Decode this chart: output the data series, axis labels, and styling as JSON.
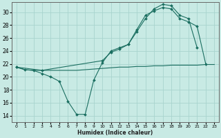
{
  "xlabel": "Humidex (Indice chaleur)",
  "bg_color": "#c8eae4",
  "grid_color": "#a8d4ce",
  "line_color": "#1a6e60",
  "x_ticks": [
    0,
    1,
    2,
    3,
    4,
    5,
    6,
    7,
    8,
    9,
    10,
    11,
    12,
    13,
    14,
    15,
    16,
    17,
    18,
    19,
    20,
    21,
    22,
    23
  ],
  "y_ticks": [
    14,
    16,
    18,
    20,
    22,
    24,
    26,
    28,
    30
  ],
  "xlim": [
    -0.5,
    23.5
  ],
  "ylim": [
    13.0,
    31.5
  ],
  "series": [
    {
      "x": [
        0,
        1,
        2,
        3,
        4,
        5,
        6,
        7,
        8,
        9,
        10,
        11,
        12,
        13,
        14,
        15,
        16,
        17,
        18,
        19,
        20,
        21,
        22,
        23
      ],
      "y": [
        21.5,
        21.1,
        21.0,
        21.0,
        21.0,
        21.0,
        21.0,
        21.0,
        21.1,
        21.2,
        21.3,
        21.4,
        21.5,
        21.5,
        21.6,
        21.6,
        21.7,
        21.7,
        21.8,
        21.8,
        21.8,
        21.8,
        21.9,
        21.9
      ],
      "marker": false
    },
    {
      "x": [
        0,
        1,
        2,
        3,
        4,
        5,
        6,
        7,
        8,
        9,
        10,
        11,
        12,
        13,
        14,
        15,
        16,
        17,
        18,
        19,
        20,
        21,
        22
      ],
      "y": [
        21.5,
        21.1,
        21.0,
        20.5,
        20.0,
        19.3,
        16.2,
        14.2,
        14.2,
        19.5,
        22.2,
        24.0,
        24.5,
        25.0,
        27.3,
        29.5,
        30.2,
        30.7,
        30.5,
        29.0,
        28.5,
        27.8,
        22.0
      ],
      "marker": true
    },
    {
      "x": [
        0,
        3,
        10,
        11,
        12,
        13,
        14,
        15,
        16,
        17,
        18,
        19,
        20,
        21
      ],
      "y": [
        21.5,
        21.0,
        22.5,
        23.8,
        24.3,
        25.0,
        27.0,
        29.0,
        30.5,
        31.2,
        31.0,
        29.5,
        29.0,
        24.5
      ],
      "marker": true
    }
  ]
}
